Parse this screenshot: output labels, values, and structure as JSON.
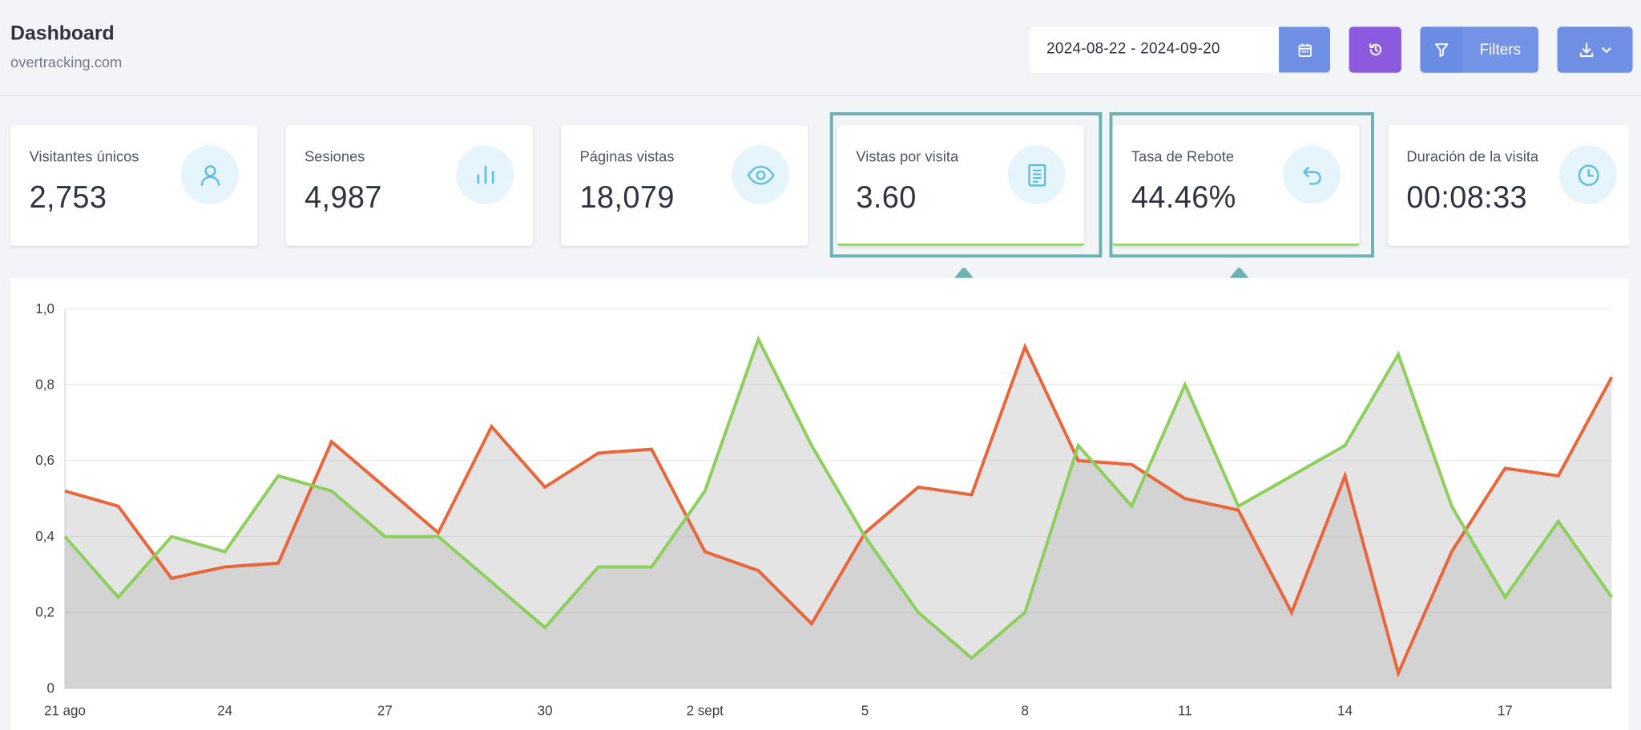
{
  "header": {
    "title": "Dashboard",
    "subtitle": "overtracking.com",
    "date_range": "2024-08-22 - 2024-09-20",
    "filters_label": "Filters"
  },
  "icons": {
    "calendar": "calendar-icon",
    "history": "history-icon",
    "filter": "funnel-icon",
    "download": "download-icon"
  },
  "colors": {
    "accent_blue": "#6e8fe3",
    "accent_purple": "#8b5ade",
    "highlight_teal": "#6bb2b1",
    "series_orange": "#e8663c",
    "series_green": "#8ccf5b"
  },
  "cards": [
    {
      "label": "Visitantes únicos",
      "value": "2,753",
      "icon": "user-icon"
    },
    {
      "label": "Sesiones",
      "value": "4,987",
      "icon": "bar-chart-icon"
    },
    {
      "label": "Páginas vistas",
      "value": "18,079",
      "icon": "eye-icon"
    },
    {
      "label": "Vistas por visita",
      "value": "3.60",
      "icon": "document-icon"
    },
    {
      "label": "Tasa de Rebote",
      "value": "44.46%",
      "icon": "undo-icon"
    },
    {
      "label": "Duración de la visita",
      "value": "00:08:33",
      "icon": "clock-icon"
    }
  ],
  "chart_data": {
    "type": "area",
    "y_ticks": [
      "0",
      "0,2",
      "0,4",
      "0,6",
      "0,8",
      "1,0"
    ],
    "x_ticks": [
      "21 ago",
      "24",
      "27",
      "30",
      "2 sept",
      "5",
      "8",
      "11",
      "14",
      "17"
    ],
    "ylim": [
      0,
      1
    ],
    "x_count": 30,
    "grid": true,
    "series": [
      {
        "color": "#e8663c",
        "values": [
          0.52,
          0.48,
          0.29,
          0.32,
          0.33,
          0.65,
          0.53,
          0.41,
          0.69,
          0.53,
          0.62,
          0.63,
          0.36,
          0.31,
          0.17,
          0.41,
          0.53,
          0.51,
          0.9,
          0.6,
          0.59,
          0.5,
          0.47,
          0.2,
          0.56,
          0.04,
          0.36,
          0.58,
          0.56,
          0.82
        ]
      },
      {
        "color": "#8ccf5b",
        "values": [
          0.4,
          0.24,
          0.4,
          0.36,
          0.56,
          0.52,
          0.4,
          0.4,
          0.28,
          0.16,
          0.32,
          0.32,
          0.52,
          0.92,
          0.64,
          0.4,
          0.2,
          0.08,
          0.2,
          0.64,
          0.48,
          0.8,
          0.48,
          0.56,
          0.64,
          0.88,
          0.48,
          0.24,
          0.44,
          0.24
        ]
      }
    ]
  }
}
